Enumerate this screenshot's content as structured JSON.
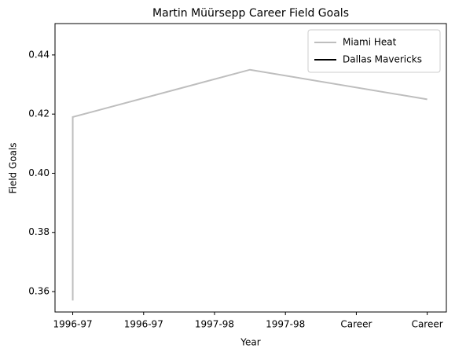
{
  "chart_data": {
    "type": "line",
    "title": "Martin Müürsepp Career Field Goals",
    "xlabel": "Year",
    "ylabel": "Field Goals",
    "x": [
      0,
      0,
      2.5,
      5
    ],
    "series": [
      {
        "name": "Miami Heat",
        "color": "#bebebe",
        "values": [
          0.357,
          0.419,
          0.435,
          0.425
        ]
      },
      {
        "name": "Dallas Mavericks",
        "color": "#000000",
        "values": [
          null,
          null,
          null,
          null
        ]
      }
    ],
    "xlim": [
      -0.25,
      5.27
    ],
    "xticks": [
      {
        "value": 0,
        "label": "1996-97"
      },
      {
        "value": 1,
        "label": "1996-97"
      },
      {
        "value": 2,
        "label": "1997-98"
      },
      {
        "value": 3,
        "label": "1997-98"
      },
      {
        "value": 4,
        "label": "Career"
      },
      {
        "value": 5,
        "label": "Career"
      }
    ],
    "ylim": [
      0.3531,
      0.4506
    ],
    "yticks": [
      0.36,
      0.38,
      {
        "value": 0.4,
        "label": "0.40"
      },
      0.42,
      0.44
    ],
    "legend": "upper right",
    "grid": false
  }
}
